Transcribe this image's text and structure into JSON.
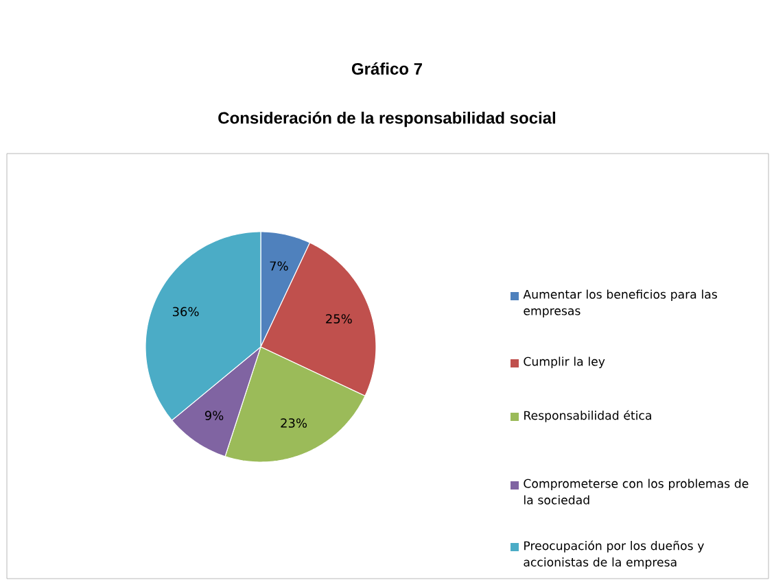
{
  "chart_data": {
    "type": "pie",
    "title": "Gráfico 7",
    "subtitle": "Consideración de la responsabilidad social",
    "categories": [
      "Aumentar los beneficios para las empresas",
      "Cumplir la ley",
      "Responsabilidad ética",
      "Comprometerse con los problemas de la sociedad",
      "Preocupación por los dueños y accionistas de la empresa"
    ],
    "values": [
      7,
      25,
      23,
      9,
      36
    ],
    "value_labels": [
      "7%",
      "25%",
      "23%",
      "9%",
      "36%"
    ],
    "colors": [
      "#4f81bd",
      "#c0504d",
      "#9bbb59",
      "#8064a2",
      "#4bacc6"
    ],
    "legend": "right"
  }
}
